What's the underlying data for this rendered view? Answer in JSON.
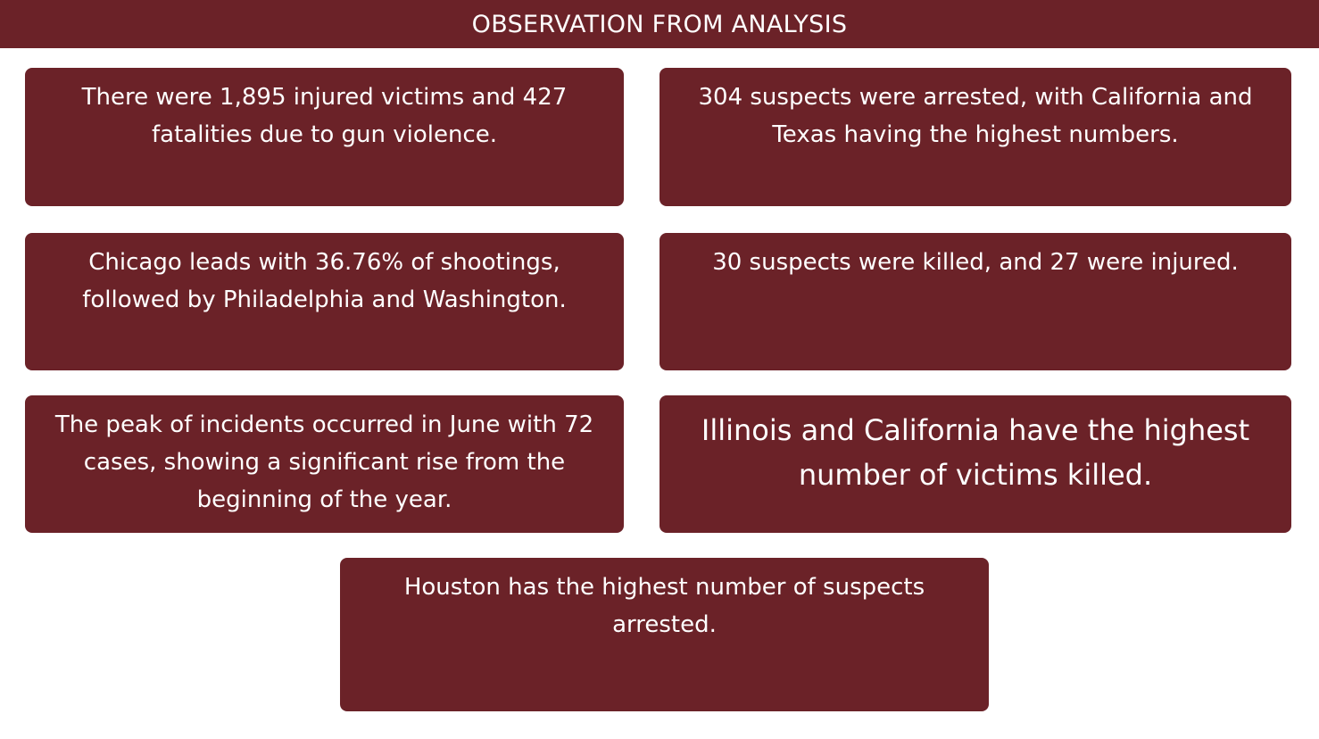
{
  "header": {
    "title": "OBSERVATION FROM ANALYSIS"
  },
  "observations": [
    "There were 1,895 injured victims and 427 fatalities due to gun violence.",
    "304 suspects were arrested, with California and Texas having the highest numbers.",
    "Chicago leads with 36.76% of shootings, followed by Philadelphia and Washington.",
    "30 suspects were killed, and 27 were injured.",
    "The peak of incidents occurred in June with 72 cases, showing a significant rise from the beginning of the year.",
    "Illinois and California have the highest number of victims killed.",
    "Houston has the highest number of suspects arrested."
  ],
  "colors": {
    "card_background": "#6b2228",
    "text": "#ffffff",
    "page_background": "#ffffff"
  }
}
